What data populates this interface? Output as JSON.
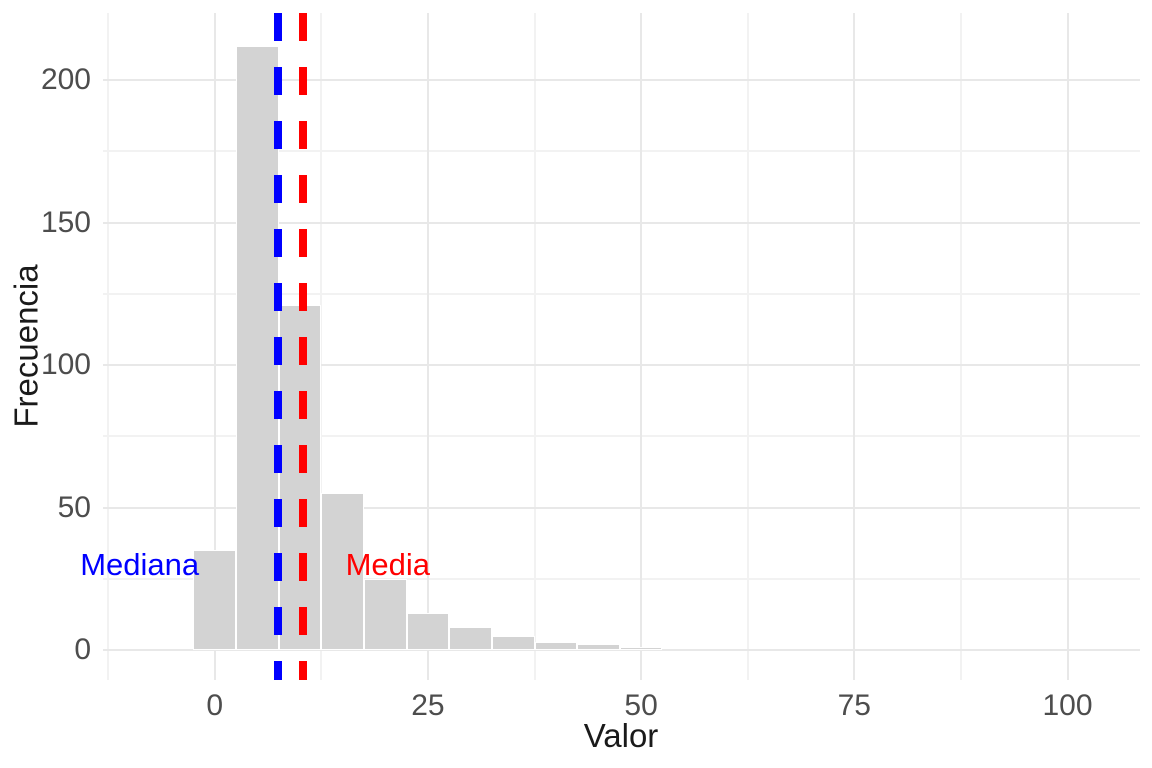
{
  "figure": {
    "background": "#FFFFFF",
    "x_axis_title": "Valor",
    "y_axis_title": "Frecuencia"
  },
  "chart_data": {
    "type": "bar",
    "subtype": "histogram",
    "title": "",
    "xlabel": "Valor",
    "ylabel": "Frecuencia",
    "bin_width": 5,
    "bin_centers": [
      0,
      5,
      10,
      15,
      20,
      25,
      30,
      35,
      40,
      45,
      50
    ],
    "counts": [
      35,
      212,
      121,
      55,
      25,
      13,
      8,
      5,
      3,
      2,
      1
    ],
    "x_ticks": [
      0,
      25,
      50,
      75,
      100
    ],
    "y_ticks": [
      0,
      50,
      100,
      150,
      200
    ],
    "x_minor_breaks": [
      -12.5,
      12.5,
      37.5,
      62.5,
      87.5
    ],
    "y_minor_breaks": [
      25,
      75,
      125,
      175
    ],
    "xlim": [
      -13.1,
      108.5
    ],
    "ylim": [
      -10.5,
      223.5
    ],
    "grid": true,
    "legend": false,
    "bar_fill": "#D3D3D3",
    "bar_border": "#FFFFFF",
    "grid_major_color": "#E8E8E8",
    "grid_minor_color": "#F2F2F2",
    "tick_label_color": "#4D4D4D",
    "axis_title_color": "#1A1A1A",
    "vlines": [
      {
        "name": "mediana-line",
        "x": 7.4,
        "color": "#0000FF",
        "style": "dashed"
      },
      {
        "name": "media-line",
        "x": 10.3,
        "color": "#FF0000",
        "style": "dashed"
      }
    ],
    "annotations": [
      {
        "name": "mediana-label",
        "text": "Mediana",
        "x": -8.8,
        "y": 30,
        "color": "#0000FF"
      },
      {
        "name": "media-label",
        "text": "Media",
        "x": 20.3,
        "y": 30,
        "color": "#FF0000"
      }
    ]
  }
}
